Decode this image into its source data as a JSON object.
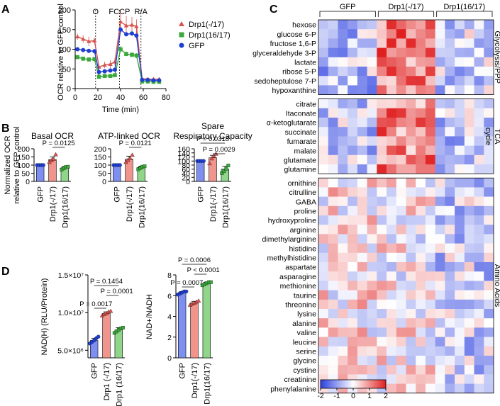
{
  "panel_labels": {
    "a": "A",
    "b": "B",
    "c": "C",
    "d": "D"
  },
  "colors": {
    "drp1_m17": "#d9534f",
    "drp1_16_17": "#3aa83a",
    "gfp": "#1f3fd1",
    "bar_gfp": "#7f8ff0",
    "bar_m17": "#f0948c",
    "bar_1617": "#8fd68a"
  },
  "chart_data": [
    {
      "id": "ocr_timecourse",
      "type": "line",
      "ylabel": "OCR relative to GFP control",
      "xlabel": "Time (min)",
      "xlim": [
        0,
        80
      ],
      "ylim": [
        0,
        200
      ],
      "xticks": [
        0,
        20,
        40,
        60,
        80
      ],
      "yticks": [
        0,
        50,
        100,
        150,
        200
      ],
      "annotations": [
        {
          "x": 18,
          "label": "O"
        },
        {
          "x": 39,
          "label": "FCCP"
        },
        {
          "x": 58,
          "label": "R/A"
        }
      ],
      "x": [
        2,
        7,
        12,
        17,
        21,
        26,
        31,
        35,
        40,
        45,
        50,
        54,
        59,
        64,
        69,
        74
      ],
      "series": [
        {
          "name": "Drp1(-/17)",
          "color_key": "drp1_m17",
          "marker": "triangle",
          "values": [
            132,
            126,
            120,
            122,
            55,
            60,
            62,
            68,
            170,
            160,
            162,
            158,
            25,
            24,
            24,
            24
          ],
          "errors": [
            8,
            10,
            12,
            8,
            6,
            8,
            10,
            10,
            30,
            25,
            20,
            18,
            5,
            5,
            5,
            5
          ]
        },
        {
          "name": "Drp1(16/17)",
          "color_key": "drp1_16_17",
          "marker": "square",
          "values": [
            80,
            76,
            74,
            75,
            30,
            32,
            32,
            34,
            100,
            88,
            86,
            84,
            18,
            18,
            17,
            17
          ],
          "errors": [
            5,
            5,
            5,
            5,
            4,
            4,
            4,
            4,
            8,
            6,
            6,
            6,
            3,
            3,
            3,
            3
          ]
        },
        {
          "name": "GFP",
          "color_key": "gfp",
          "marker": "circle",
          "values": [
            100,
            98,
            96,
            95,
            42,
            44,
            46,
            48,
            150,
            138,
            140,
            135,
            22,
            22,
            21,
            21
          ],
          "errors": [
            2,
            2,
            2,
            2,
            3,
            3,
            3,
            3,
            6,
            5,
            5,
            5,
            2,
            2,
            2,
            2
          ]
        }
      ]
    },
    {
      "id": "basal_ocr",
      "type": "bar",
      "title": "Basal OCR",
      "ylabel": "Normalized OCR relative to GFP control",
      "categories": [
        "GFP",
        "Drp1(-/17)",
        "Drp1(16/17)"
      ],
      "values": [
        100,
        134,
        84
      ],
      "errors": [
        2,
        16,
        8
      ],
      "points": [
        [
          100,
          100,
          100,
          100
        ],
        [
          118,
          128,
          137,
          165
        ],
        [
          72,
          80,
          88,
          90
        ]
      ],
      "ylim": [
        0,
        200
      ],
      "yticks": [
        0,
        50,
        100,
        150,
        200
      ],
      "pvalues": [
        {
          "label": "P = 0.0125",
          "from": 1,
          "to": 2
        }
      ]
    },
    {
      "id": "atp_linked_ocr",
      "type": "bar",
      "title": "ATP-linked OCR",
      "categories": [
        "GFP",
        "Drp1(-/17)",
        "Drp1(16/17)"
      ],
      "values": [
        100,
        137,
        86
      ],
      "errors": [
        2,
        18,
        8
      ],
      "points": [
        [
          100,
          100,
          100,
          100
        ],
        [
          118,
          130,
          142,
          162
        ],
        [
          74,
          82,
          90,
          93
        ]
      ],
      "ylim": [
        0,
        200
      ],
      "yticks": [
        0,
        50,
        100,
        150,
        200
      ],
      "pvalues": [
        {
          "label": "P = 0.0121",
          "from": 1,
          "to": 2
        }
      ]
    },
    {
      "id": "spare_capacity",
      "type": "bar",
      "title": "Spare Respiratory Capacity",
      "categories": [
        "GFP",
        "Drp1(-/17)",
        "Drp1(16/17)"
      ],
      "values": [
        100,
        116,
        60
      ],
      "errors": [
        2,
        12,
        14
      ],
      "points": [
        [
          100,
          100,
          100,
          100
        ],
        [
          88,
          112,
          124,
          135
        ],
        [
          40,
          50,
          62,
          78
        ]
      ],
      "ylim": [
        0,
        160
      ],
      "yticks": [
        0,
        20,
        40,
        60,
        80,
        100,
        120,
        140,
        160
      ],
      "pvalues": [
        {
          "label": "P = 0.0318",
          "from": 0,
          "to": 2
        },
        {
          "label": "P = 0.0029",
          "from": 1,
          "to": 2
        }
      ]
    },
    {
      "id": "nadh_total",
      "type": "bar",
      "ylabel": "NAD(H) (RLU/Protein)",
      "categories": [
        "GFP",
        "Drp1 (-/17)",
        "Drp1 (16/17)"
      ],
      "values": [
        6300000,
        9900000,
        7700000
      ],
      "errors": [
        300000,
        200000,
        300000
      ],
      "points": [
        [
          5900000,
          6100000,
          6300000,
          6600000,
          6800000
        ],
        [
          9600000,
          9800000,
          9900000,
          10100000,
          10200000
        ],
        [
          7300000,
          7500000,
          7700000,
          7900000,
          8000000
        ]
      ],
      "ylim": [
        4000000,
        15000000
      ],
      "ytick_values": [
        5000000,
        10000000,
        15000000
      ],
      "yticks": [
        "5.0×10⁶",
        "1.0×10⁷",
        "1.5×10⁷"
      ],
      "pvalues": [
        {
          "label": "P = 0.1454",
          "from": 0,
          "to": 2
        },
        {
          "label": "P = 0.0001",
          "from": 1,
          "to": 2
        },
        {
          "label": "P = 0.0017",
          "from": 0,
          "to": 1
        }
      ]
    },
    {
      "id": "nad_ratio",
      "type": "bar",
      "ylabel": "NAD+/NADH",
      "categories": [
        "GFP",
        "Drp1(-/17)",
        "Drp1(16/17)"
      ],
      "values": [
        6.3,
        5.3,
        7.2
      ],
      "errors": [
        0.1,
        0.15,
        0.1
      ],
      "points": [
        [
          6.1,
          6.2,
          6.3,
          6.4,
          6.4
        ],
        [
          5.1,
          5.2,
          5.3,
          5.4,
          5.5
        ],
        [
          7.0,
          7.1,
          7.2,
          7.3,
          7.3
        ]
      ],
      "ylim": [
        0,
        8
      ],
      "yticks": [
        0,
        2,
        4,
        6,
        8
      ],
      "pvalues": [
        {
          "label": "P = 0.0006",
          "from": 0,
          "to": 2
        },
        {
          "label": "P < 0.0001",
          "from": 1,
          "to": 2
        },
        {
          "label": "P = 0.0007",
          "from": 0,
          "to": 1
        }
      ]
    },
    {
      "id": "metabolite_heatmap",
      "type": "heatmap",
      "groups": [
        "GFP",
        "Drp1(-/17)",
        "Drp1(16/17)"
      ],
      "samples_per_group": 6,
      "sections": [
        {
          "label": "Glycolysis/PPP",
          "rows": [
            "hexose",
            "glucose 6-P",
            "fructose 1,6-P",
            "glyceraldehyde 3-P",
            "lactate",
            "ribose 5-P",
            "sedoheptulose 7-P",
            "hypoxanthine"
          ]
        },
        {
          "label": "TCA cycle",
          "rows": [
            "citrate",
            "Itaconate",
            "α-ketoglutarate",
            "succinate",
            "fumarate",
            "malate",
            "glutamate",
            "glutamine"
          ]
        },
        {
          "label": "Amino Acids",
          "rows": [
            "ornithine",
            "citrulline",
            "GABA",
            "proline",
            "hydroxyproline",
            "arginine",
            "dimethylarginine",
            "histidine",
            "methylhistidine",
            "aspartate",
            "asparagine",
            "methionine",
            "taurine",
            "threonine",
            "lysine",
            "alanine",
            "valine",
            "leucine",
            "serine",
            "glycine",
            "cystine",
            "creatinine",
            "phenylalanine"
          ]
        }
      ],
      "colorbar": {
        "min": -2,
        "max": 2,
        "ticks": [
          "-2",
          "-1",
          "0",
          "1",
          "2"
        ],
        "low": "#2a3fe0",
        "mid": "#ffffff",
        "high": "#e02020"
      }
    }
  ]
}
